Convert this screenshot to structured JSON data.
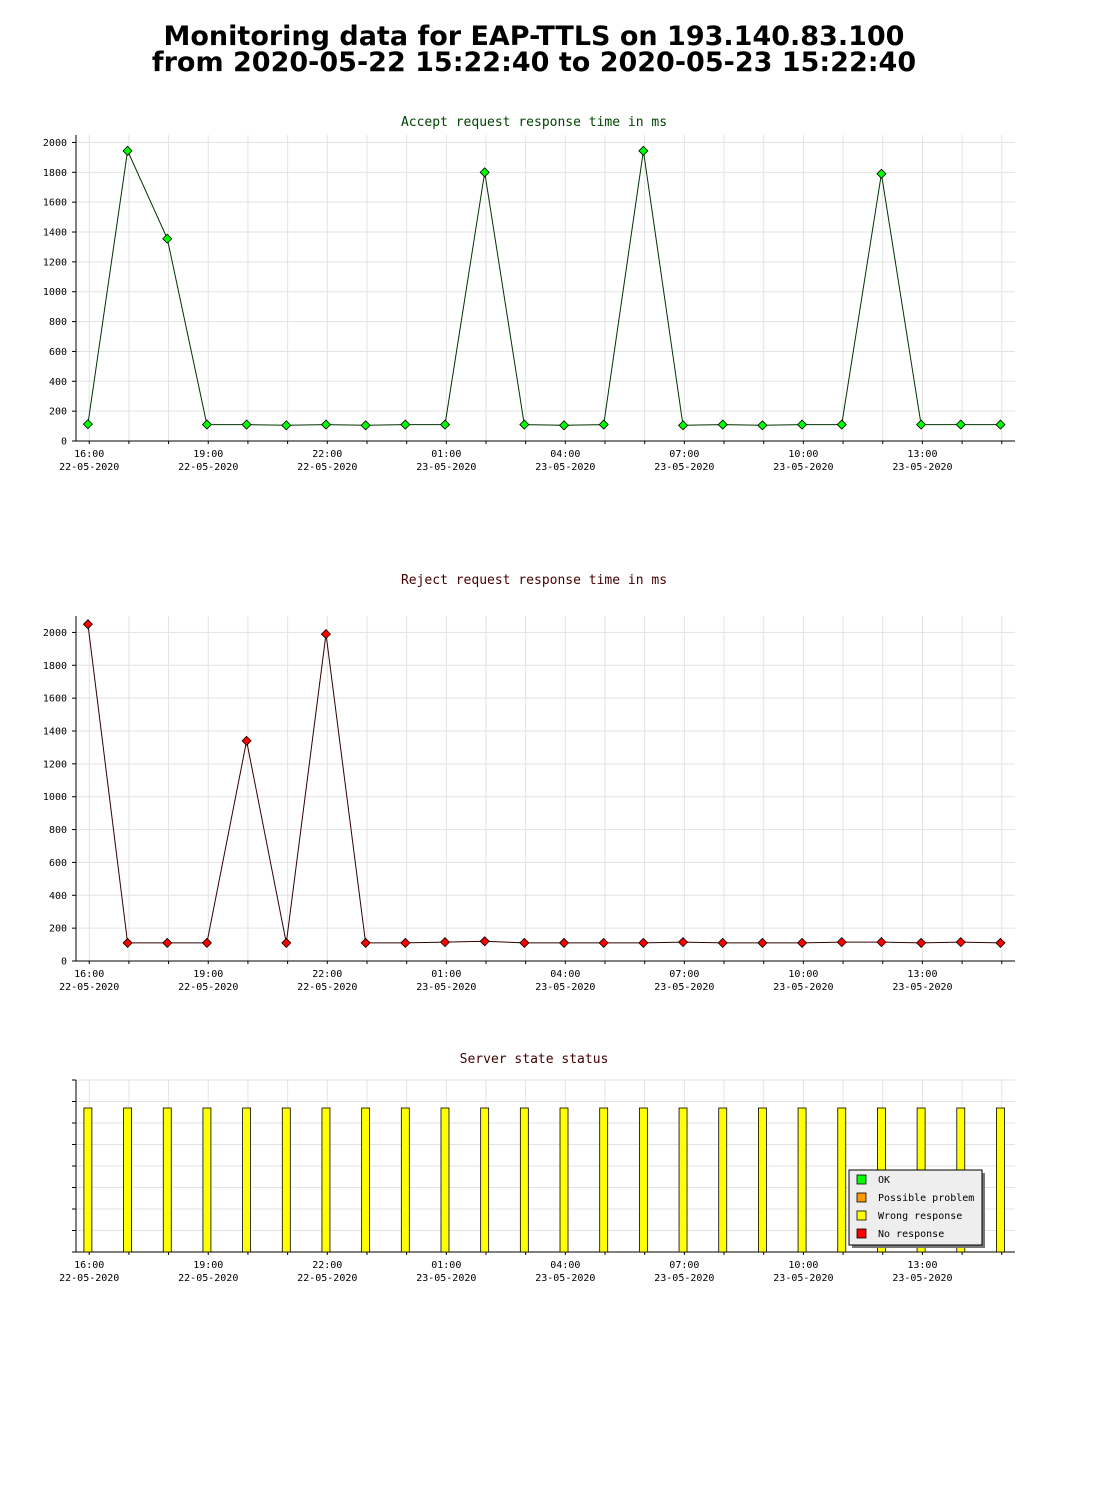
{
  "page": {
    "title_line1": "Monitoring data for EAP-TTLS on 193.140.83.100",
    "title_line2": "from 2020-05-22 15:22:40 to 2020-05-23 15:22:40"
  },
  "chart_data": [
    {
      "type": "line",
      "title": "Accept request response time in ms",
      "title_color": "#004400",
      "line_color": "#003300",
      "marker_color": "#00ff00",
      "xlabel": "",
      "ylabel": "",
      "xlim": [
        "2020-05-22 15:40",
        "2020-05-23 15:20"
      ],
      "ylim": [
        0,
        2050
      ],
      "y_ticks": [
        0,
        200,
        400,
        600,
        800,
        1000,
        1200,
        1400,
        1600,
        1800,
        2000
      ],
      "grid": true,
      "x_tick_labels": [
        {
          "time": "2020-05-22 16:00",
          "label": "16:00",
          "date": "22-05-2020"
        },
        {
          "time": "2020-05-22 19:00",
          "label": "19:00",
          "date": "22-05-2020"
        },
        {
          "time": "2020-05-22 22:00",
          "label": "22:00",
          "date": "22-05-2020"
        },
        {
          "time": "2020-05-23 01:00",
          "label": "01:00",
          "date": "23-05-2020"
        },
        {
          "time": "2020-05-23 04:00",
          "label": "04:00",
          "date": "23-05-2020"
        },
        {
          "time": "2020-05-23 07:00",
          "label": "07:00",
          "date": "23-05-2020"
        },
        {
          "time": "2020-05-23 10:00",
          "label": "10:00",
          "date": "23-05-2020"
        },
        {
          "time": "2020-05-23 13:00",
          "label": "13:00",
          "date": "23-05-2020"
        }
      ],
      "x": [
        "2020-05-22 15:58",
        "2020-05-22 16:58",
        "2020-05-22 17:58",
        "2020-05-22 18:58",
        "2020-05-22 19:58",
        "2020-05-22 20:58",
        "2020-05-22 21:58",
        "2020-05-22 22:58",
        "2020-05-22 23:58",
        "2020-05-23 00:58",
        "2020-05-23 01:58",
        "2020-05-23 02:58",
        "2020-05-23 03:58",
        "2020-05-23 04:58",
        "2020-05-23 05:58",
        "2020-05-23 06:58",
        "2020-05-23 07:58",
        "2020-05-23 08:58",
        "2020-05-23 09:58",
        "2020-05-23 10:58",
        "2020-05-23 11:58",
        "2020-05-23 12:58",
        "2020-05-23 13:58",
        "2020-05-23 14:58"
      ],
      "values": [
        113,
        1944,
        1355,
        110,
        110,
        105,
        110,
        105,
        110,
        110,
        1800,
        110,
        105,
        110,
        1944,
        105,
        110,
        105,
        110,
        110,
        1790,
        110,
        110,
        110
      ]
    },
    {
      "type": "line",
      "title": "Reject request response time in ms",
      "title_color": "#440000",
      "line_color": "#330000",
      "marker_color": "#ff0000",
      "xlabel": "",
      "ylabel": "",
      "xlim": [
        "2020-05-22 15:40",
        "2020-05-23 15:20"
      ],
      "ylim": [
        0,
        2100
      ],
      "y_ticks": [
        0,
        200,
        400,
        600,
        800,
        1000,
        1200,
        1400,
        1600,
        1800,
        2000
      ],
      "grid": true,
      "x_tick_labels": [
        {
          "time": "2020-05-22 16:00",
          "label": "16:00",
          "date": "22-05-2020"
        },
        {
          "time": "2020-05-22 19:00",
          "label": "19:00",
          "date": "22-05-2020"
        },
        {
          "time": "2020-05-22 22:00",
          "label": "22:00",
          "date": "22-05-2020"
        },
        {
          "time": "2020-05-23 01:00",
          "label": "01:00",
          "date": "23-05-2020"
        },
        {
          "time": "2020-05-23 04:00",
          "label": "04:00",
          "date": "23-05-2020"
        },
        {
          "time": "2020-05-23 07:00",
          "label": "07:00",
          "date": "23-05-2020"
        },
        {
          "time": "2020-05-23 10:00",
          "label": "10:00",
          "date": "23-05-2020"
        },
        {
          "time": "2020-05-23 13:00",
          "label": "13:00",
          "date": "23-05-2020"
        }
      ],
      "x": [
        "2020-05-22 15:58",
        "2020-05-22 16:58",
        "2020-05-22 17:58",
        "2020-05-22 18:58",
        "2020-05-22 19:58",
        "2020-05-22 20:58",
        "2020-05-22 21:58",
        "2020-05-22 22:58",
        "2020-05-22 23:58",
        "2020-05-23 00:58",
        "2020-05-23 01:58",
        "2020-05-23 02:58",
        "2020-05-23 03:58",
        "2020-05-23 04:58",
        "2020-05-23 05:58",
        "2020-05-23 06:58",
        "2020-05-23 07:58",
        "2020-05-23 08:58",
        "2020-05-23 09:58",
        "2020-05-23 10:58",
        "2020-05-23 11:58",
        "2020-05-23 12:58",
        "2020-05-23 13:58",
        "2020-05-23 14:58"
      ],
      "values": [
        2050,
        110,
        110,
        110,
        1340,
        110,
        1990,
        110,
        110,
        115,
        120,
        110,
        110,
        110,
        110,
        115,
        110,
        110,
        110,
        115,
        115,
        110,
        115,
        110
      ]
    },
    {
      "type": "bar",
      "title": "Server state status",
      "title_color": "#440000",
      "bar_color": "#ffff00",
      "xlim": [
        "2020-05-22 15:40",
        "2020-05-23 15:20"
      ],
      "x_tick_labels": [
        {
          "time": "2020-05-22 16:00",
          "label": "16:00",
          "date": "22-05-2020"
        },
        {
          "time": "2020-05-22 19:00",
          "label": "19:00",
          "date": "22-05-2020"
        },
        {
          "time": "2020-05-22 22:00",
          "label": "22:00",
          "date": "22-05-2020"
        },
        {
          "time": "2020-05-23 01:00",
          "label": "01:00",
          "date": "23-05-2020"
        },
        {
          "time": "2020-05-23 04:00",
          "label": "04:00",
          "date": "23-05-2020"
        },
        {
          "time": "2020-05-23 07:00",
          "label": "07:00",
          "date": "23-05-2020"
        },
        {
          "time": "2020-05-23 10:00",
          "label": "10:00",
          "date": "23-05-2020"
        },
        {
          "time": "2020-05-23 13:00",
          "label": "13:00",
          "date": "23-05-2020"
        }
      ],
      "x": [
        "2020-05-22 15:58",
        "2020-05-22 16:58",
        "2020-05-22 17:58",
        "2020-05-22 18:58",
        "2020-05-22 19:58",
        "2020-05-22 20:58",
        "2020-05-22 21:58",
        "2020-05-22 22:58",
        "2020-05-22 23:58",
        "2020-05-23 00:58",
        "2020-05-23 01:58",
        "2020-05-23 02:58",
        "2020-05-23 03:58",
        "2020-05-23 04:58",
        "2020-05-23 05:58",
        "2020-05-23 06:58",
        "2020-05-23 07:58",
        "2020-05-23 08:58",
        "2020-05-23 09:58",
        "2020-05-23 10:58",
        "2020-05-23 11:58",
        "2020-05-23 12:58",
        "2020-05-23 13:58",
        "2020-05-23 14:58"
      ],
      "states": [
        "Wrong response",
        "Wrong response",
        "Wrong response",
        "Wrong response",
        "Wrong response",
        "Wrong response",
        "Wrong response",
        "Wrong response",
        "Wrong response",
        "Wrong response",
        "Wrong response",
        "Wrong response",
        "Wrong response",
        "Wrong response",
        "Wrong response",
        "Wrong response",
        "Wrong response",
        "Wrong response",
        "Wrong response",
        "Wrong response",
        "Wrong response",
        "Wrong response",
        "Wrong response",
        "Wrong response"
      ],
      "legend_position": "bottom-right",
      "legend": [
        {
          "label": "OK",
          "color": "#00ff00"
        },
        {
          "label": "Possible problem",
          "color": "#ff9900"
        },
        {
          "label": "Wrong response",
          "color": "#ffff00"
        },
        {
          "label": "No response",
          "color": "#ff0000"
        }
      ]
    }
  ]
}
